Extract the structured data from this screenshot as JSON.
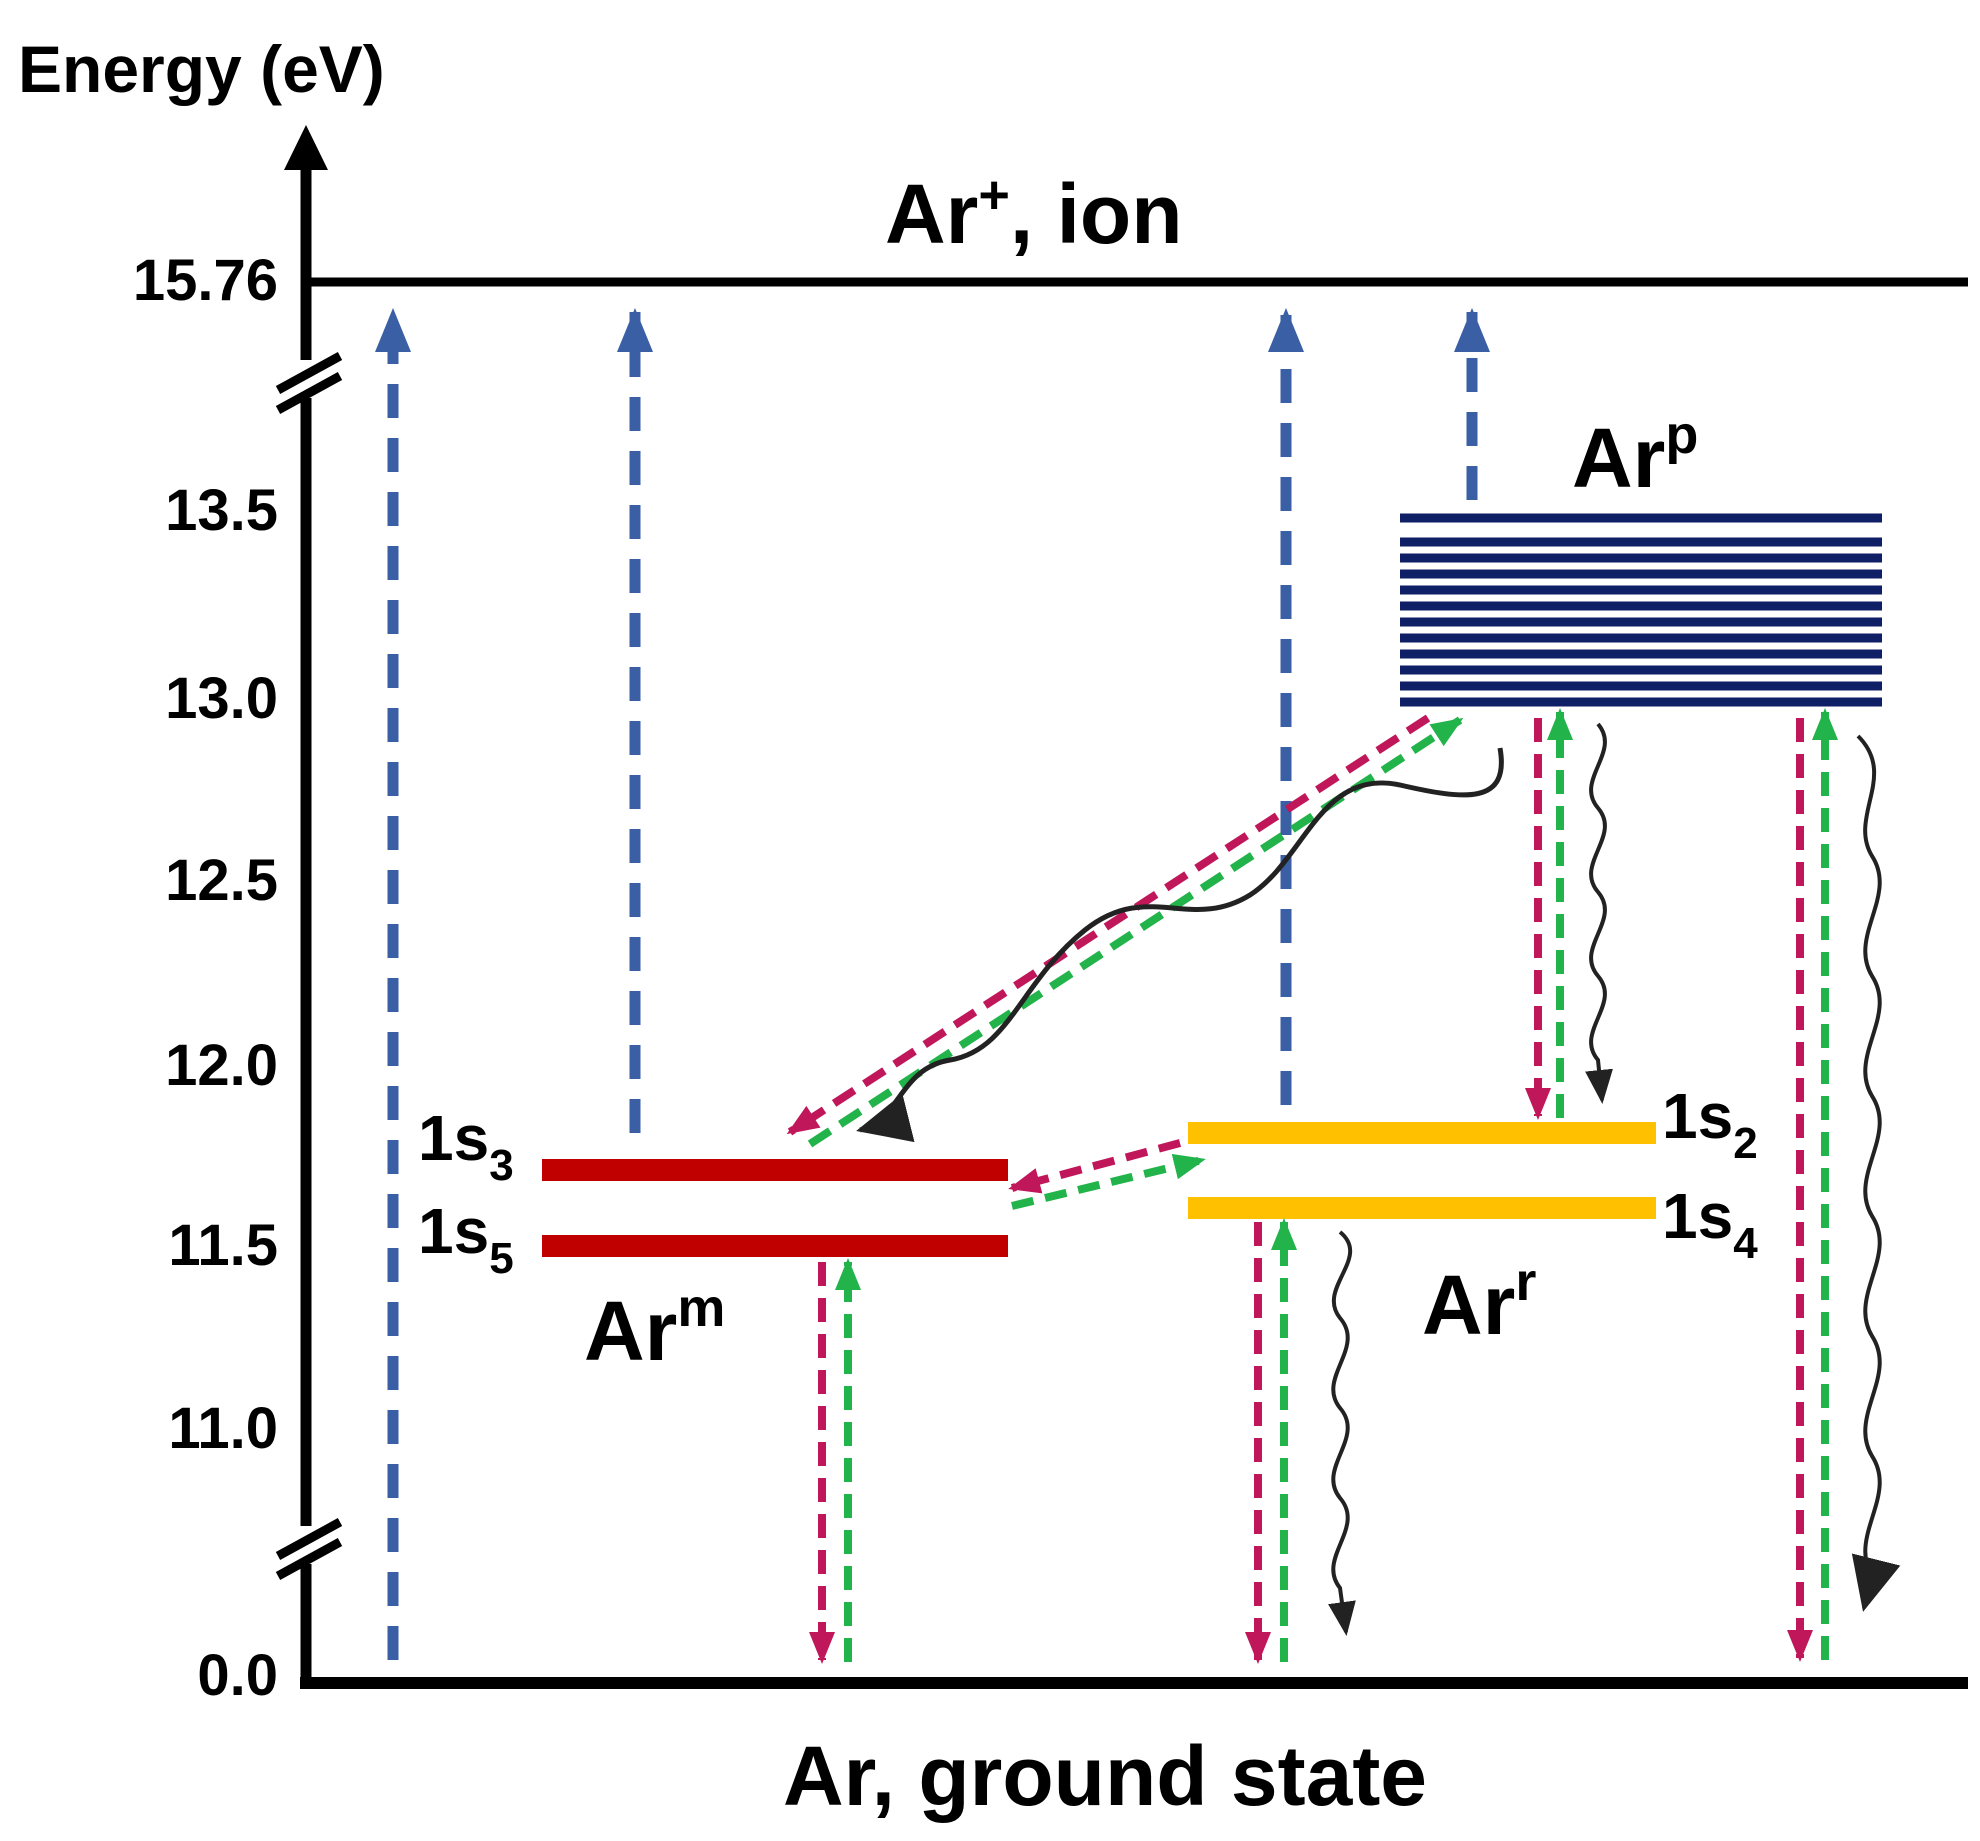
{
  "axis": {
    "title": "Energy (eV)",
    "ticks": [
      "15.76",
      "13.5",
      "13.0",
      "12.5",
      "12.0",
      "11.5",
      "11.0",
      "0.0"
    ]
  },
  "levels": {
    "ion": {
      "base": "Ar",
      "sup": "+",
      "rest": ", ion"
    },
    "ground": "Ar, ground state",
    "arp": {
      "base": "Ar",
      "sup": "p"
    },
    "arm": {
      "base": "Ar",
      "sup": "m"
    },
    "arr": {
      "base": "Ar",
      "sup": "r"
    },
    "s3": {
      "base": "1s",
      "sub": "3"
    },
    "s5": {
      "base": "1s",
      "sub": "5"
    },
    "s2": {
      "base": "1s",
      "sub": "2"
    },
    "s4": {
      "base": "1s",
      "sub": "4"
    }
  },
  "colors": {
    "axis": "#000000",
    "ionization_arrow": "#3a5fa5",
    "de_excitation_arrow": "#c0175a",
    "excitation_arrow": "#22b34b",
    "radiative_decay": "#222222",
    "arp_levels": "#0e1f66",
    "arm_levels": "#c00000",
    "arr_levels": "#ffc000"
  }
}
